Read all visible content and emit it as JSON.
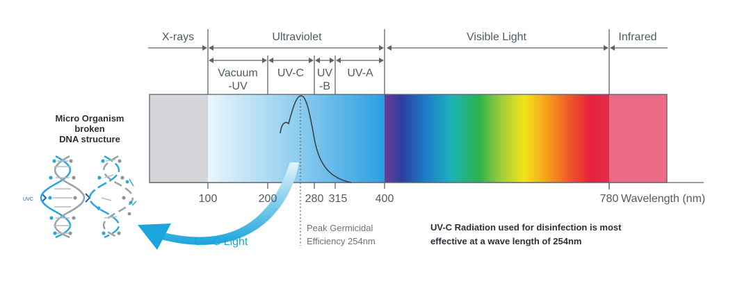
{
  "bands": {
    "xrays": "X-rays",
    "ultraviolet": "Ultraviolet",
    "visible": "Visible Light",
    "infrared": "Infrared"
  },
  "uv_sub": {
    "vacuum_1": "Vacuum",
    "vacuum_2": "-UV",
    "uvc": "UV-C",
    "uvb_1": "UV",
    "uvb_2": "-B",
    "uva": "UV-A"
  },
  "axis": {
    "ticks": [
      "100",
      "200",
      "280",
      "315",
      "400",
      "780"
    ],
    "label": "Wavelength (nm)"
  },
  "peak": {
    "line1": "Peak Germicidal",
    "line2": "Efficiency 254nm"
  },
  "uvc_light": "UV-C Light",
  "note": {
    "line1": "UV-C Radiation used for disinfection is most",
    "line2": "effective at a wave length of 254nm"
  },
  "organism": {
    "line1": "Micro Organism",
    "line2": "broken",
    "line3": "DNA structure"
  },
  "uvc_small": "UVC",
  "colors": {
    "xray_gray": "#d6d5d9",
    "uv_light": "#e7f5fc",
    "uv_dark": "#2b9fe2",
    "infrared": "#ee6a84",
    "accent_blue": "#1ba5dc",
    "text": "#4f5a63"
  }
}
